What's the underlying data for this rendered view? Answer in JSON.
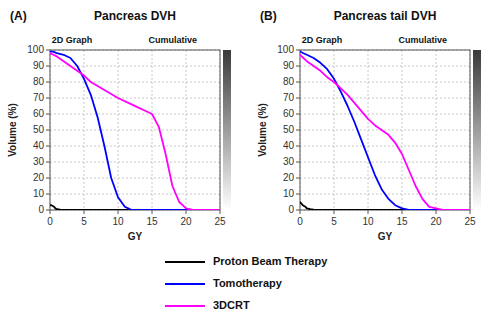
{
  "chart_data": [
    {
      "type": "line",
      "title": "Pancreas DVH",
      "annotations": [
        "(A)",
        "2D Graph",
        "Cumulative"
      ],
      "x_label": "GY",
      "y_label": "Volume (%)",
      "xlim": [
        0,
        25
      ],
      "ylim": [
        0,
        100
      ],
      "xticks": [
        0,
        5,
        10,
        15,
        20,
        25
      ],
      "yticks": [
        0,
        10,
        20,
        30,
        40,
        50,
        60,
        70,
        80,
        90,
        100
      ],
      "grid": true,
      "legend": "bottom",
      "series": [
        {
          "name": "Proton Beam Therapy",
          "color": "#000000",
          "x": [
            0,
            0.2,
            0.4,
            0.6,
            0.8,
            1.0,
            1.5,
            2.0,
            2.5,
            3.0,
            25
          ],
          "values": [
            3,
            3,
            2.5,
            2,
            1,
            0.5,
            0.2,
            0.1,
            0.0,
            0.0,
            0.0
          ]
        },
        {
          "name": "Tomotherapy",
          "color": "#0000ff",
          "x": [
            0,
            0.5,
            1,
            2,
            3,
            4,
            5,
            6,
            7,
            8,
            9,
            10,
            11,
            11.5,
            12,
            25
          ],
          "values": [
            99,
            99,
            98,
            97,
            95,
            90,
            82,
            72,
            58,
            40,
            20,
            8,
            2,
            1,
            0,
            0
          ]
        },
        {
          "name": "3DCRT",
          "color": "#ff00ff",
          "x": [
            0,
            0.5,
            1,
            2,
            3,
            4,
            5,
            6,
            8,
            10,
            12,
            13,
            14,
            15,
            16,
            17,
            18,
            19,
            19.5,
            20,
            21,
            25
          ],
          "values": [
            98,
            97,
            96,
            93,
            90,
            87,
            84,
            80,
            75,
            70,
            66,
            64,
            62,
            60,
            52,
            35,
            15,
            5,
            3,
            1,
            0,
            0
          ]
        }
      ]
    },
    {
      "type": "line",
      "title": "Pancreas tail DVH",
      "annotations": [
        "(B)",
        "2D Graph",
        "Cumulative"
      ],
      "x_label": "GY",
      "y_label": "Volume (%)",
      "xlim": [
        0,
        25
      ],
      "ylim": [
        0,
        100
      ],
      "xticks": [
        0,
        5,
        10,
        15,
        20,
        25
      ],
      "yticks": [
        0,
        10,
        20,
        30,
        40,
        50,
        60,
        70,
        80,
        90,
        100
      ],
      "grid": true,
      "series": [
        {
          "name": "Proton Beam Therapy",
          "color": "#000000",
          "x": [
            0,
            0.2,
            0.4,
            0.6,
            0.8,
            1.0,
            1.5,
            2.0,
            2.5,
            3.0,
            4.0,
            5.0,
            25
          ],
          "values": [
            5,
            4,
            3,
            2.5,
            2,
            1,
            0.5,
            0.2,
            0.1,
            0.0,
            0.0,
            0.0,
            0.0
          ]
        },
        {
          "name": "Tomotherapy",
          "color": "#0000ff",
          "x": [
            0,
            0.5,
            1,
            2,
            3,
            4,
            5,
            6,
            7,
            8,
            9,
            10,
            11,
            12,
            13,
            14,
            15,
            15.5,
            16,
            25
          ],
          "values": [
            99,
            98,
            97,
            95,
            92,
            88,
            82,
            74,
            65,
            55,
            44,
            33,
            22,
            13,
            7,
            3,
            1,
            0.5,
            0,
            0
          ]
        },
        {
          "name": "3DCRT",
          "color": "#ff00ff",
          "x": [
            0,
            0.5,
            1,
            2,
            3,
            4,
            5,
            6,
            7,
            8,
            9,
            10,
            11,
            12,
            13,
            14,
            15,
            16,
            17,
            18,
            19,
            20,
            21,
            25
          ],
          "values": [
            97,
            95,
            93,
            90,
            87,
            83,
            80,
            76,
            72,
            67,
            62,
            57,
            53,
            50,
            47,
            42,
            35,
            25,
            15,
            7,
            2,
            1,
            0,
            0
          ]
        }
      ]
    }
  ]
}
